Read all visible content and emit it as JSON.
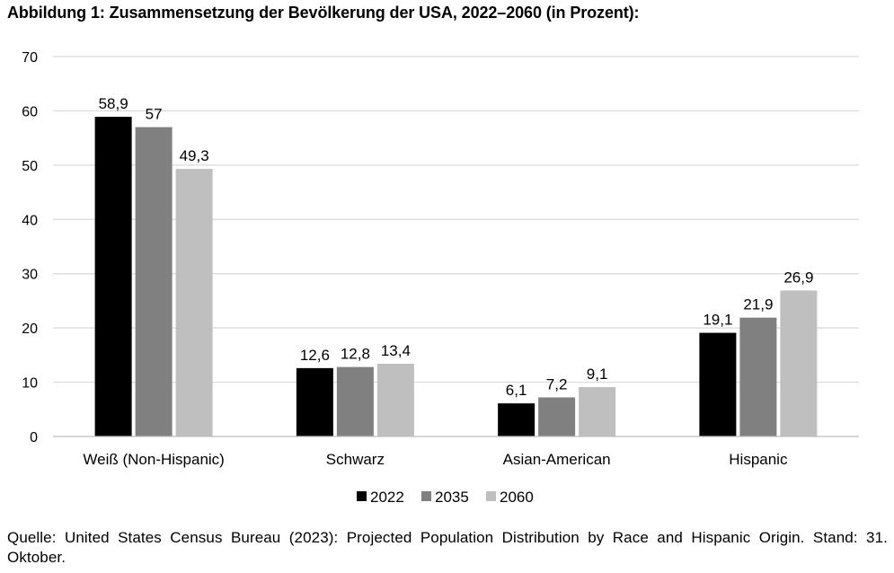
{
  "title": "Abbildung 1: Zusammensetzung der Bevölkerung der USA, 2022–2060 (in Prozent):",
  "source": "Quelle: United States Census Bureau (2023): Projected Population Distribution by Race and Hispanic Origin. Stand: 31. Oktober.",
  "chart_data": {
    "type": "bar",
    "title": "Abbildung 1: Zusammensetzung der Bevölkerung der USA, 2022–2060 (in Prozent):",
    "xlabel": "",
    "ylabel": "",
    "ylim": [
      0,
      70
    ],
    "yticks": [
      0,
      10,
      20,
      30,
      40,
      50,
      60,
      70
    ],
    "grid": true,
    "legend": "bottom",
    "categories": [
      "Weiß (Non-Hispanic)",
      "Schwarz",
      "Asian-American",
      "Hispanic"
    ],
    "series": [
      {
        "name": "2022",
        "color": "#000000",
        "values": [
          58.9,
          12.6,
          6.1,
          19.1
        ],
        "labels": [
          "58,9",
          "12,6",
          "6,1",
          "19,1"
        ]
      },
      {
        "name": "2035",
        "color": "#808080",
        "values": [
          57,
          12.8,
          7.2,
          21.9
        ],
        "labels": [
          "57",
          "12,8",
          "7,2",
          "21,9"
        ]
      },
      {
        "name": "2060",
        "color": "#bfbfbf",
        "values": [
          49.3,
          13.4,
          9.1,
          26.9
        ],
        "labels": [
          "49,3",
          "13,4",
          "9,1",
          "26,9"
        ]
      }
    ]
  }
}
